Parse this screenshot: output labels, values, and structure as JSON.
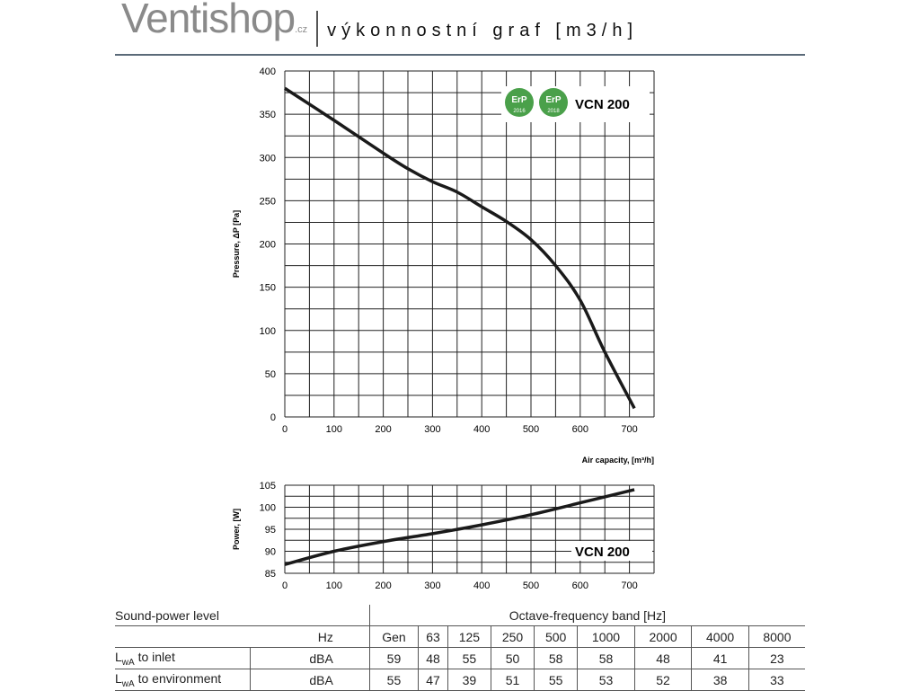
{
  "header": {
    "logo": "Ventishop",
    "logo_suffix": ".cz",
    "subtitle": "výkonnostní graf [m3/h]"
  },
  "badges": [
    {
      "text": "ErP",
      "year": "2016"
    },
    {
      "text": "ErP",
      "year": "2018"
    }
  ],
  "colors": {
    "badge": "#4aa04a",
    "curve": "#1a1a1a",
    "grid": "#222"
  },
  "chart_data": [
    {
      "type": "line",
      "title": "VCN 200",
      "xlabel": "Air capacity, [m³/h]",
      "ylabel": "Pressure, ΔP [Pa]",
      "xlim": [
        0,
        750
      ],
      "ylim": [
        0,
        400
      ],
      "xticks": [
        0,
        100,
        200,
        300,
        400,
        500,
        600,
        700
      ],
      "yticks": [
        0,
        50,
        100,
        150,
        200,
        250,
        300,
        350,
        400
      ],
      "grid": true,
      "x": [
        0,
        100,
        200,
        250,
        300,
        350,
        400,
        450,
        500,
        550,
        600,
        650,
        710
      ],
      "y": [
        380,
        343,
        305,
        287,
        272,
        260,
        243,
        226,
        205,
        175,
        135,
        75,
        10
      ]
    },
    {
      "type": "line",
      "title": "VCN 200",
      "xlabel": "",
      "ylabel": "Power, [W]",
      "xlim": [
        0,
        750
      ],
      "ylim": [
        85,
        105
      ],
      "xticks": [
        0,
        100,
        200,
        300,
        400,
        500,
        600,
        700
      ],
      "yticks": [
        85,
        90,
        95,
        100,
        105
      ],
      "grid": true,
      "x": [
        0,
        100,
        200,
        300,
        400,
        500,
        600,
        710
      ],
      "y": [
        87,
        90,
        92.2,
        94,
        96,
        98.3,
        101,
        104
      ]
    }
  ],
  "table": {
    "title": "Sound-power level",
    "band_title": "Octave-frequency band [Hz]",
    "unit_label": "Hz",
    "bands": [
      "Gen",
      "63",
      "125",
      "250",
      "500",
      "1000",
      "2000",
      "4000",
      "8000"
    ],
    "rows": [
      {
        "label": "L",
        "sub": "wA",
        "rest": " to inlet",
        "unit": "dBA",
        "values": [
          "59",
          "48",
          "55",
          "50",
          "58",
          "58",
          "48",
          "41",
          "23"
        ]
      },
      {
        "label": "L",
        "sub": "wA",
        "rest": " to environment",
        "unit": "dBA",
        "values": [
          "55",
          "47",
          "39",
          "51",
          "55",
          "53",
          "52",
          "38",
          "33"
        ]
      }
    ]
  }
}
